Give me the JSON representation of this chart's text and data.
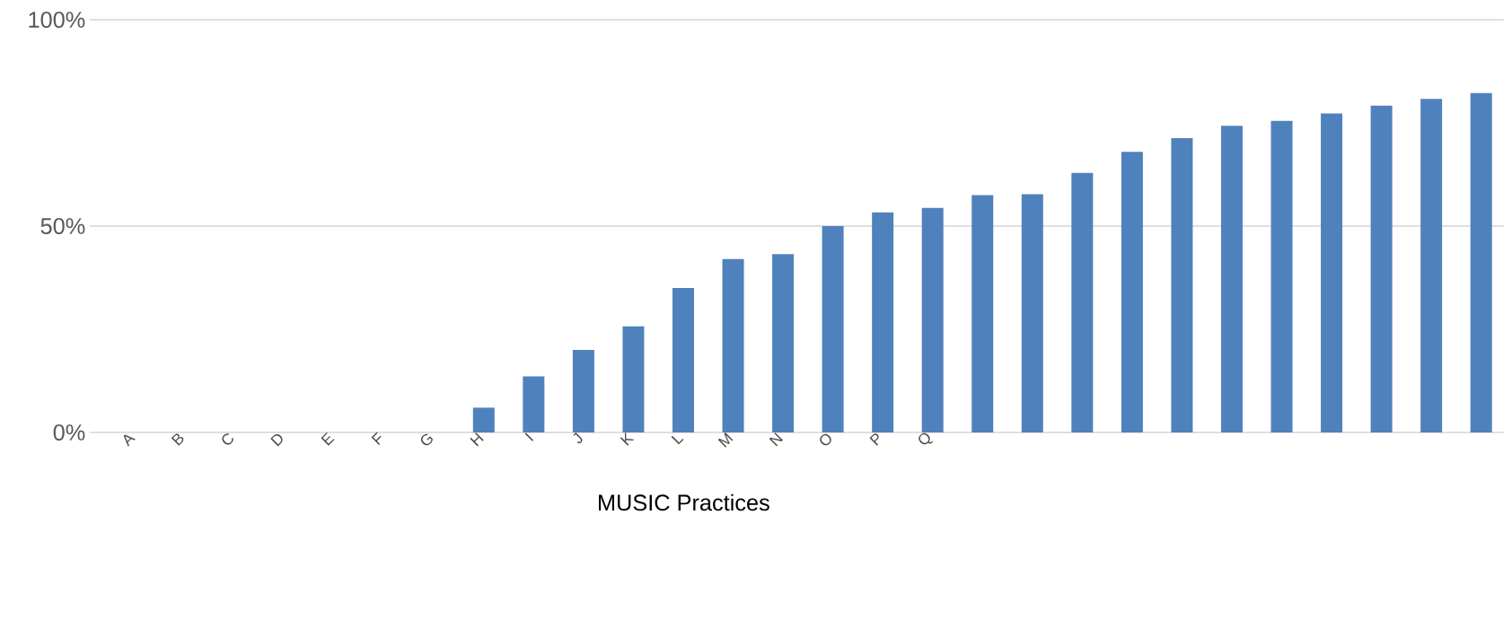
{
  "chart_data": {
    "type": "bar",
    "xlabel": "MUSIC Practices",
    "categories": [
      "A",
      "B",
      "C",
      "D",
      "E",
      "F",
      "G",
      "H",
      "I",
      "J",
      "K",
      "L",
      "M",
      "N",
      "O",
      "P",
      "Q",
      null,
      null,
      null,
      null,
      null,
      null,
      null,
      null,
      null,
      null,
      null
    ],
    "values": [
      0,
      0,
      0,
      0,
      0,
      0,
      0,
      6,
      13.6,
      20,
      25.7,
      35,
      42,
      43.2,
      50,
      53.3,
      54.4,
      57.5,
      57.7,
      62.9,
      68,
      71.3,
      74.3,
      75.5,
      77.3,
      79.2,
      80.8,
      82.2
    ],
    "color": "#4f81bd",
    "ylim": [
      0,
      100
    ],
    "yticks": [
      {
        "value": 0,
        "label": "0%"
      },
      {
        "value": 50,
        "label": "50%"
      },
      {
        "value": 100,
        "label": "100%"
      }
    ],
    "grid": "y"
  }
}
